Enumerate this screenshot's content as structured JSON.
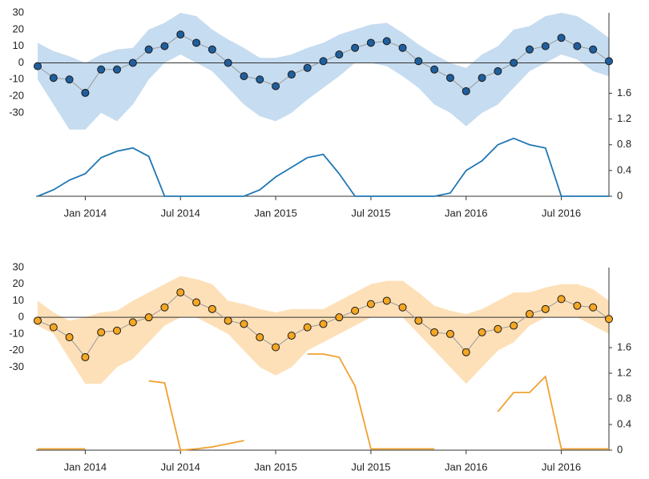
{
  "chart_data": [
    {
      "type": "line",
      "x": [
        "2013-10",
        "2013-11",
        "2013-12",
        "2014-01",
        "2014-02",
        "2014-03",
        "2014-04",
        "2014-05",
        "2014-06",
        "2014-07",
        "2014-08",
        "2014-09",
        "2014-10",
        "2014-11",
        "2014-12",
        "2015-01",
        "2015-02",
        "2015-03",
        "2015-04",
        "2015-05",
        "2015-06",
        "2015-07",
        "2015-08",
        "2015-09",
        "2015-10",
        "2015-11",
        "2015-12",
        "2016-01",
        "2016-02",
        "2016-03",
        "2016-04",
        "2016-05",
        "2016-06",
        "2016-07",
        "2016-08",
        "2016-09",
        "2016-10"
      ],
      "xlim": [
        "2013-10",
        "2016-10"
      ],
      "xticks": [
        {
          "value": "2014-01",
          "label": "Jan 2014"
        },
        {
          "value": "2014-07",
          "label": "Jul 2014"
        },
        {
          "value": "2015-01",
          "label": "Jan 2015"
        },
        {
          "value": "2015-07",
          "label": "Jul 2015"
        },
        {
          "value": "2016-01",
          "label": "Jan 2016"
        },
        {
          "value": "2016-07",
          "label": "Jul 2016"
        }
      ],
      "ylim": [
        -80,
        30
      ],
      "yticks": [
        30,
        20,
        10,
        0,
        -10,
        -20,
        -30
      ],
      "y2lim": [
        0,
        2.85
      ],
      "y2ticks": [
        0,
        0.4,
        0.8,
        1.2,
        1.6
      ],
      "reference_line": 0,
      "band": {
        "color": "#c6dcf0",
        "upper": [
          12,
          7,
          4,
          0,
          5,
          8,
          9,
          20,
          24,
          30,
          28,
          20,
          14,
          9,
          3,
          3,
          5,
          9,
          12,
          17,
          20,
          23,
          24,
          18,
          11,
          5,
          0,
          -3,
          5,
          10,
          20,
          22,
          28,
          30,
          28,
          22,
          15
        ],
        "lower": [
          -10,
          -25,
          -40,
          -40,
          -30,
          -35,
          -25,
          -10,
          0,
          5,
          0,
          -5,
          -15,
          -25,
          -32,
          -35,
          -30,
          -22,
          -15,
          -8,
          0,
          0,
          -2,
          -8,
          -15,
          -25,
          -30,
          -38,
          -30,
          -25,
          -15,
          -5,
          0,
          5,
          2,
          -5,
          -8
        ]
      },
      "series": [
        {
          "color": "#1f5f9e",
          "marker": true,
          "values": [
            -2,
            -9,
            -10,
            -18,
            -4,
            -4,
            0,
            8,
            10,
            17,
            12,
            8,
            0,
            -8,
            -10,
            -14,
            -7,
            -3,
            1,
            5,
            9,
            12,
            13,
            9,
            1,
            -4,
            -9,
            -17,
            -9,
            -5,
            0,
            8,
            10,
            15,
            10,
            8,
            1
          ]
        },
        {
          "color": "#1f77b4",
          "axis": "y2",
          "values": [
            0,
            0.1,
            0.25,
            0.35,
            0.6,
            0.7,
            0.75,
            0.62,
            0,
            0,
            0,
            0,
            0,
            0,
            0.1,
            0.3,
            0.45,
            0.6,
            0.65,
            0.35,
            0,
            0,
            0,
            0,
            0,
            0,
            0.05,
            0.4,
            0.55,
            0.8,
            0.9,
            0.8,
            0.75,
            0,
            0,
            0,
            0
          ]
        }
      ]
    },
    {
      "type": "line",
      "x": [
        "2013-10",
        "2013-11",
        "2013-12",
        "2014-01",
        "2014-02",
        "2014-03",
        "2014-04",
        "2014-05",
        "2014-06",
        "2014-07",
        "2014-08",
        "2014-09",
        "2014-10",
        "2014-11",
        "2014-12",
        "2015-01",
        "2015-02",
        "2015-03",
        "2015-04",
        "2015-05",
        "2015-06",
        "2015-07",
        "2015-08",
        "2015-09",
        "2015-10",
        "2015-11",
        "2015-12",
        "2016-01",
        "2016-02",
        "2016-03",
        "2016-04",
        "2016-05",
        "2016-06",
        "2016-07",
        "2016-08",
        "2016-09",
        "2016-10"
      ],
      "xlim": [
        "2013-10",
        "2016-10"
      ],
      "xticks": [
        {
          "value": "2014-01",
          "label": "Jan 2014"
        },
        {
          "value": "2014-07",
          "label": "Jul 2014"
        },
        {
          "value": "2015-01",
          "label": "Jan 2015"
        },
        {
          "value": "2015-07",
          "label": "Jul 2015"
        },
        {
          "value": "2016-01",
          "label": "Jan 2016"
        },
        {
          "value": "2016-07",
          "label": "Jul 2016"
        }
      ],
      "ylim": [
        -80,
        30
      ],
      "yticks": [
        30,
        20,
        10,
        0,
        -10,
        -20,
        -30
      ],
      "y2lim": [
        0,
        2.85
      ],
      "y2ticks": [
        0,
        0.4,
        0.8,
        1.2,
        1.6
      ],
      "reference_line": 0,
      "band": {
        "color": "#fde0b8",
        "upper": [
          10,
          3,
          -2,
          0,
          3,
          4,
          10,
          15,
          20,
          25,
          23,
          20,
          10,
          8,
          5,
          3,
          5,
          5,
          5,
          10,
          15,
          20,
          22,
          22,
          15,
          7,
          4,
          2,
          5,
          10,
          15,
          15,
          18,
          20,
          20,
          17,
          10
        ],
        "lower": [
          -5,
          -10,
          -25,
          -40,
          -40,
          -30,
          -25,
          -15,
          -5,
          0,
          0,
          -5,
          -10,
          -20,
          -30,
          -35,
          -30,
          -20,
          -15,
          -10,
          -5,
          0,
          0,
          0,
          -10,
          -20,
          -30,
          -40,
          -30,
          -20,
          -15,
          -5,
          0,
          0,
          0,
          -5,
          -10
        ]
      },
      "series": [
        {
          "color": "#f5a623",
          "marker": true,
          "values": [
            -2,
            -6,
            -12,
            -24,
            -9,
            -8,
            -3,
            0,
            6,
            15,
            9,
            5,
            -2,
            -4,
            -12,
            -18,
            -11,
            -6,
            -4,
            0,
            4,
            8,
            10,
            6,
            -2,
            -9,
            -10,
            -21,
            -9,
            -7,
            -5,
            2,
            5,
            11,
            7,
            6,
            -1
          ]
        },
        {
          "color": "#f0a030",
          "axis": "y2",
          "values": [
            0.02,
            0.02,
            0.02,
            0.02,
            null,
            null,
            null,
            1.08,
            1.05,
            0,
            0.02,
            0.05,
            0.1,
            0.15,
            null,
            null,
            null,
            1.5,
            1.5,
            1.45,
            1.0,
            0.02,
            0.02,
            0.02,
            0.02,
            0.02,
            null,
            null,
            null,
            0.6,
            0.9,
            0.9,
            1.15,
            0.02,
            0.02,
            0.02,
            0.02
          ]
        }
      ]
    }
  ]
}
